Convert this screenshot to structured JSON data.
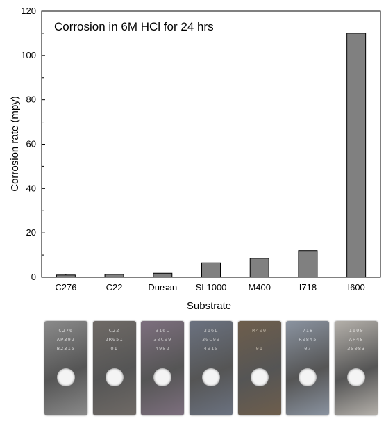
{
  "chart_data": {
    "type": "bar",
    "title": "Corrosion in 6M HCl for 24 hrs",
    "xlabel": "Substrate",
    "ylabel": "Corrosion rate (mpy)",
    "categories": [
      "C276",
      "C22",
      "Dursan",
      "SL1000",
      "M400",
      "I718",
      "I600"
    ],
    "values": [
      1.0,
      1.3,
      1.8,
      6.5,
      8.5,
      12.0,
      110.0
    ],
    "ylim": [
      0,
      120
    ],
    "yticks": [
      0,
      20,
      40,
      60,
      80,
      100,
      120
    ],
    "grid": false,
    "bar_color": "#808080"
  },
  "samples": [
    {
      "name": "C276",
      "stamp": [
        "C276",
        "AP392",
        "B2315"
      ],
      "color": "#8a8a8a",
      "stamp_color": "#e8e8e8"
    },
    {
      "name": "C22",
      "stamp": [
        "C22",
        "2R051",
        "01"
      ],
      "color": "#6f6a66",
      "stamp_color": "#e6e6e6"
    },
    {
      "name": "Dursan",
      "stamp": [
        "316L",
        "30C99",
        "4982"
      ],
      "color": "#7d6f7e",
      "stamp_color": "#d8d8d8"
    },
    {
      "name": "SL1000",
      "stamp": [
        "316L",
        "30C99",
        "4910"
      ],
      "color": "#6b7280",
      "stamp_color": "#d6d6d6"
    },
    {
      "name": "M400",
      "stamp": [
        "M400",
        "",
        "01"
      ],
      "color": "#6e5e4c",
      "stamp_color": "#d0c6b6"
    },
    {
      "name": "I718",
      "stamp": [
        "718",
        "R0845",
        "07"
      ],
      "color": "#8a93a0",
      "stamp_color": "#e2e6ea"
    },
    {
      "name": "I600",
      "stamp": [
        "I600",
        "AP48",
        "30083"
      ],
      "color": "#b4b0aa",
      "stamp_color": "#ecebe8"
    }
  ]
}
